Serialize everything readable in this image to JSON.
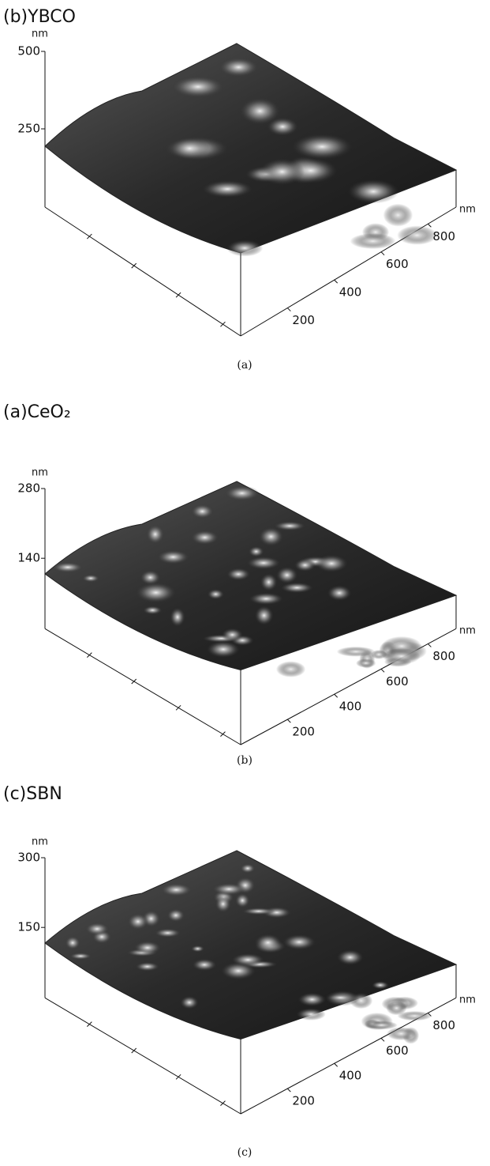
{
  "panels": [
    {
      "title": "(b)YBCO",
      "z_unit": "nm",
      "z_ticks": [
        500,
        250
      ],
      "xy_unit": "nm",
      "xy_ticks": [
        200,
        400,
        600,
        800
      ],
      "caption": "(a)"
    },
    {
      "title": "(a)CeO₂",
      "z_unit": "nm",
      "z_ticks": [
        280,
        140
      ],
      "xy_unit": "nm",
      "xy_ticks": [
        200,
        400,
        600,
        800
      ],
      "caption": "(b)"
    },
    {
      "title": "(c)SBN",
      "z_unit": "nm",
      "z_ticks": [
        300,
        150
      ],
      "xy_unit": "nm",
      "xy_ticks": [
        200,
        400,
        600,
        800
      ],
      "caption": "(c)"
    }
  ]
}
